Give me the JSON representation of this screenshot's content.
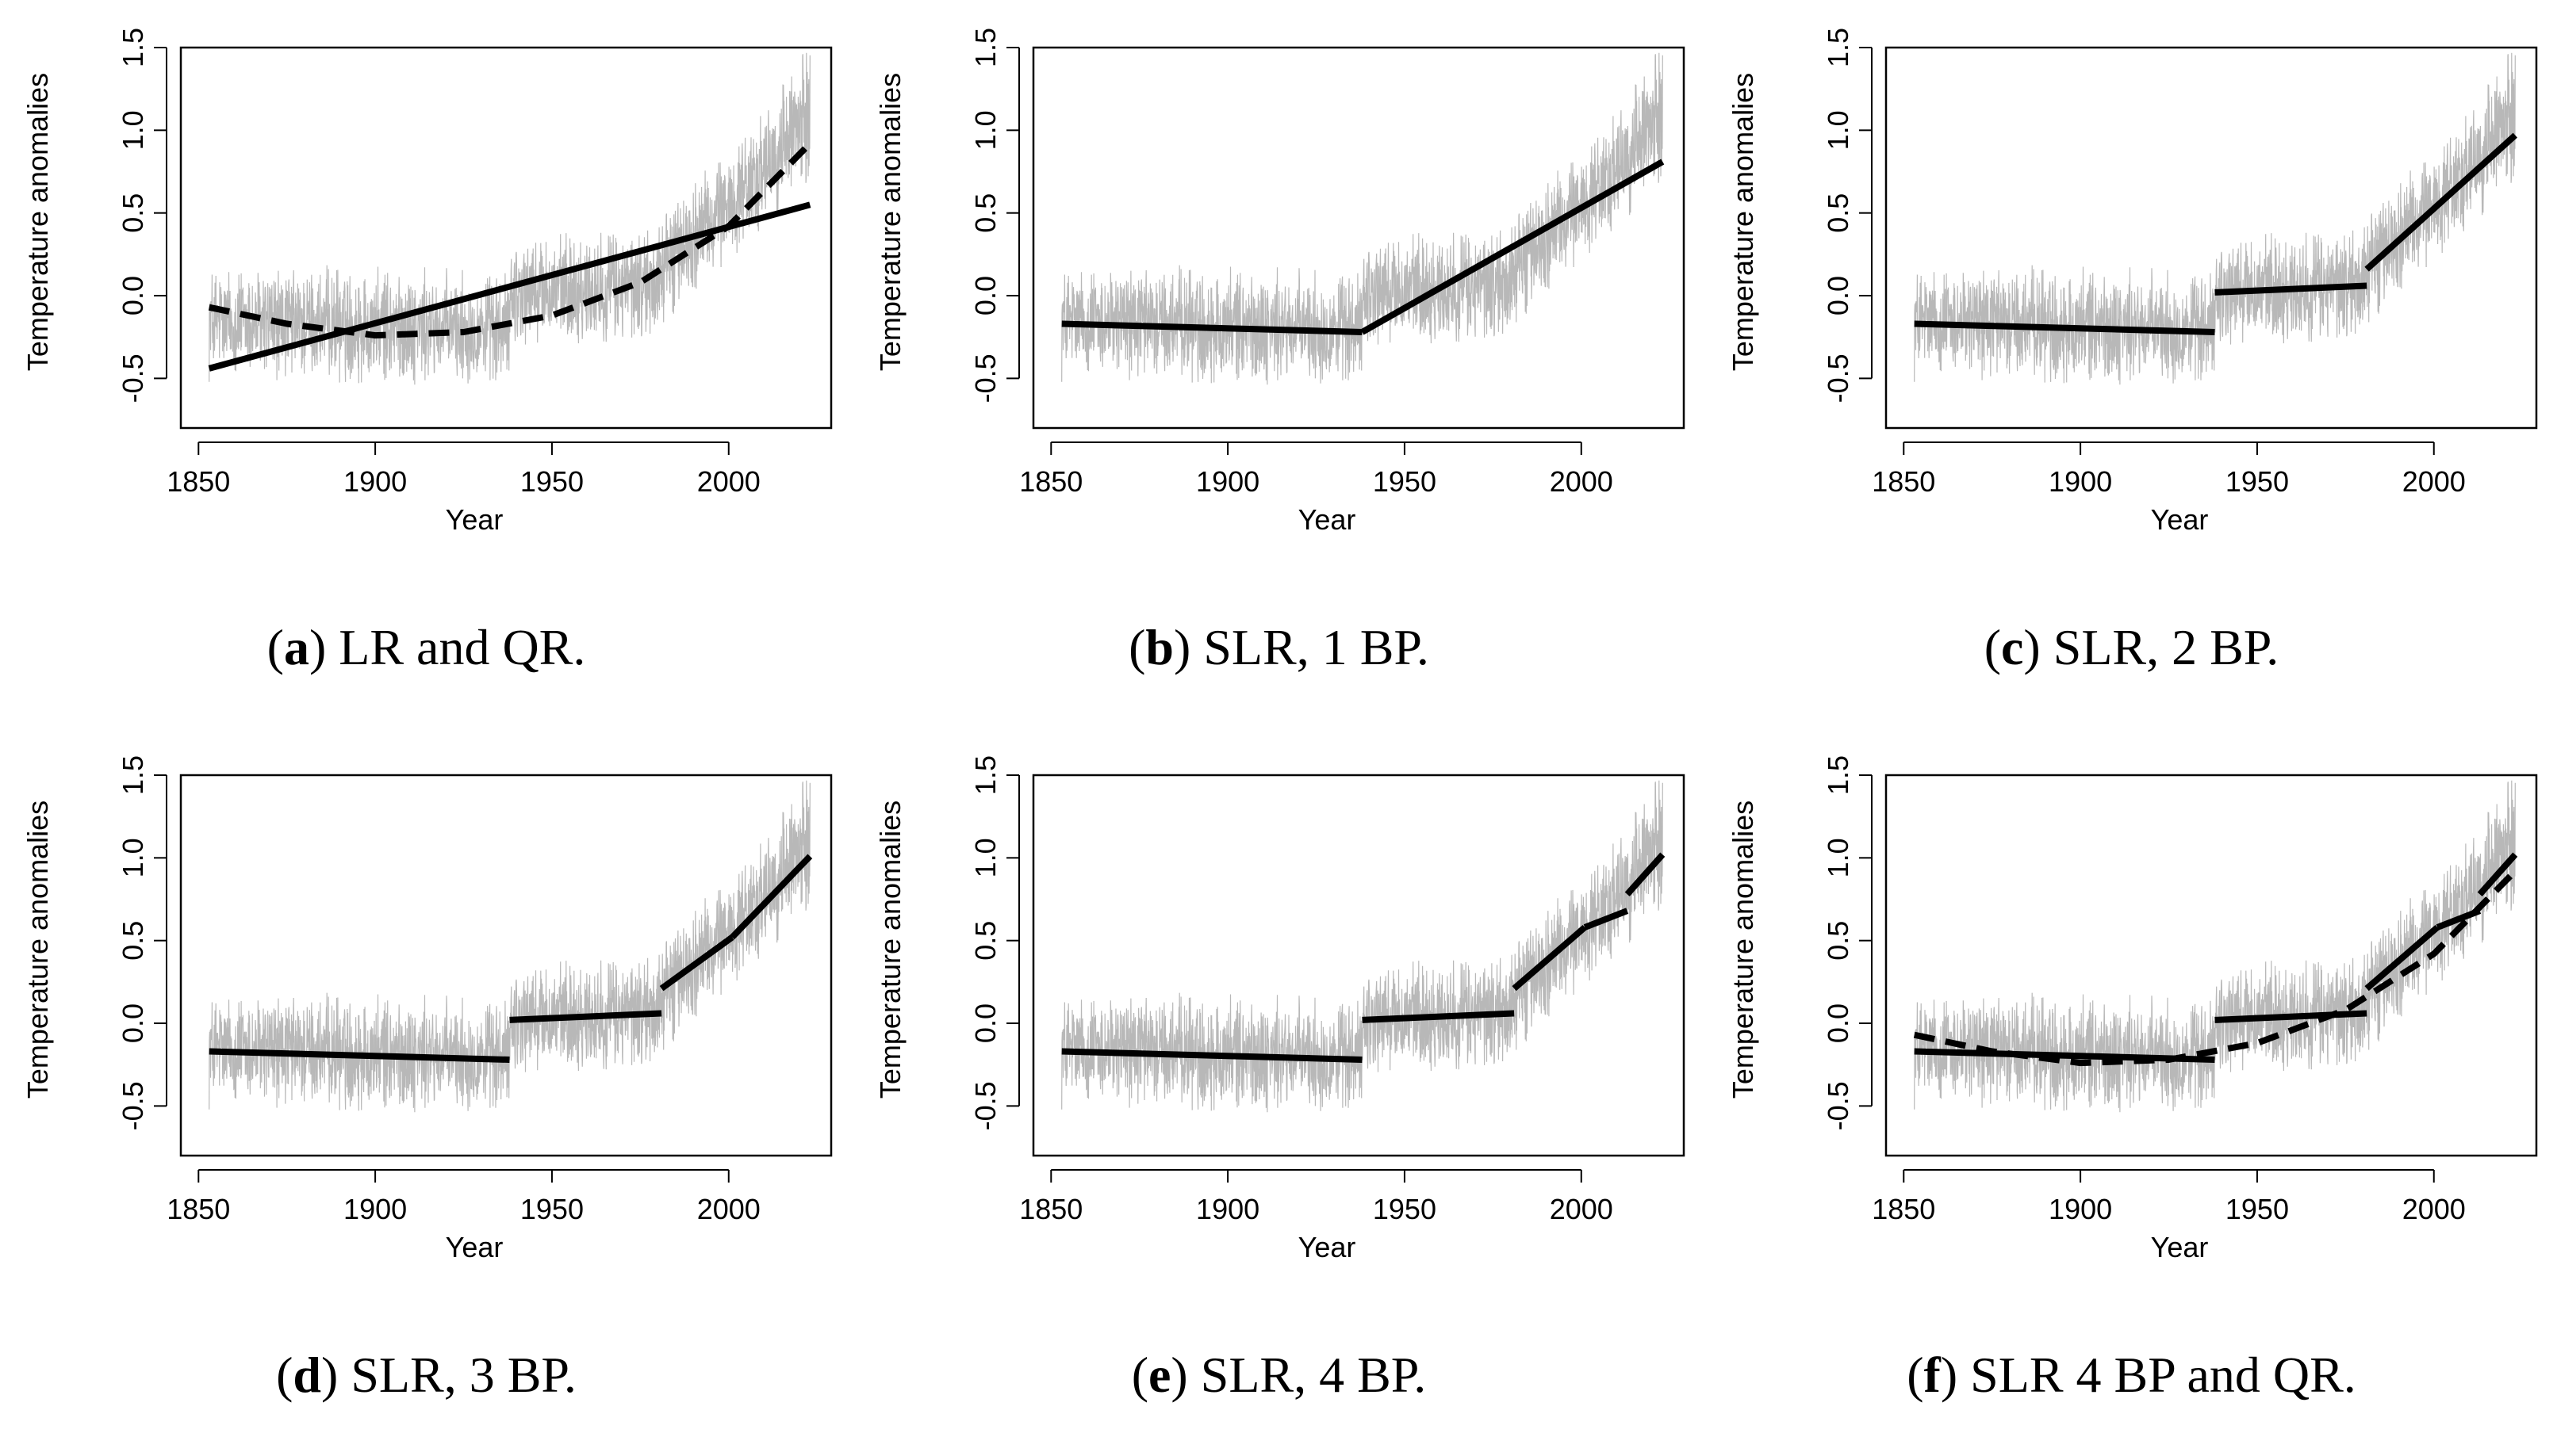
{
  "colors": {
    "noise": "#b8b8b8",
    "fit": "#000000",
    "frame": "#000000"
  },
  "chart_data": [
    {
      "type": "line",
      "id": "a",
      "caption_tag": "a",
      "caption_text": "LR and QR.",
      "xlabel": "Year",
      "ylabel": "Temperature anomalies",
      "xlim": [
        1845,
        2029
      ],
      "ylim": [
        -0.8,
        1.5
      ],
      "xticks": [
        1850,
        1900,
        1950,
        2000
      ],
      "yticks": [
        -0.5,
        0.0,
        0.5,
        1.0,
        1.5
      ],
      "xtick_labels": [
        "1850",
        "1900",
        "1950",
        "2000"
      ],
      "ytick_labels": [
        "-0.5",
        "0.0",
        "0.5",
        "1.0",
        "1.5"
      ],
      "fits": [
        {
          "name": "linear regression",
          "style": "solid",
          "points": [
            [
              1853,
              -0.44
            ],
            [
              2023,
              0.55
            ]
          ]
        },
        {
          "name": "quadratic regression",
          "style": "dashed",
          "points": [
            [
              1853,
              -0.07
            ],
            [
              1875,
              -0.17
            ],
            [
              1900,
              -0.24
            ],
            [
              1925,
              -0.22
            ],
            [
              1950,
              -0.12
            ],
            [
              1975,
              0.08
            ],
            [
              2000,
              0.42
            ],
            [
              2023,
              0.92
            ]
          ]
        }
      ]
    },
    {
      "type": "line",
      "id": "b",
      "caption_tag": "b",
      "caption_text": "SLR, 1 BP.",
      "xlabel": "Year",
      "ylabel": "Temperature anomalies",
      "xlim": [
        1845,
        2029
      ],
      "ylim": [
        -0.8,
        1.5
      ],
      "xticks": [
        1850,
        1900,
        1950,
        2000
      ],
      "yticks": [
        -0.5,
        0.0,
        0.5,
        1.0,
        1.5
      ],
      "xtick_labels": [
        "1850",
        "1900",
        "1950",
        "2000"
      ],
      "ytick_labels": [
        "-0.5",
        "0.0",
        "0.5",
        "1.0",
        "1.5"
      ],
      "fits": [
        {
          "name": "segment 1",
          "style": "solid",
          "points": [
            [
              1853,
              -0.17
            ],
            [
              1938,
              -0.22
            ]
          ]
        },
        {
          "name": "segment 2",
          "style": "solid",
          "points": [
            [
              1938,
              -0.22
            ],
            [
              2023,
              0.81
            ]
          ]
        }
      ]
    },
    {
      "type": "line",
      "id": "c",
      "caption_tag": "c",
      "caption_text": "SLR, 2 BP.",
      "xlabel": "Year",
      "ylabel": "Temperature anomalies",
      "xlim": [
        1845,
        2029
      ],
      "ylim": [
        -0.8,
        1.5
      ],
      "xticks": [
        1850,
        1900,
        1950,
        2000
      ],
      "yticks": [
        -0.5,
        0.0,
        0.5,
        1.0,
        1.5
      ],
      "xtick_labels": [
        "1850",
        "1900",
        "1950",
        "2000"
      ],
      "ytick_labels": [
        "-0.5",
        "0.0",
        "0.5",
        "1.0",
        "1.5"
      ],
      "fits": [
        {
          "name": "segment 1",
          "style": "solid",
          "points": [
            [
              1853,
              -0.17
            ],
            [
              1938,
              -0.22
            ]
          ]
        },
        {
          "name": "segment 2",
          "style": "solid",
          "points": [
            [
              1938,
              0.02
            ],
            [
              1981,
              0.06
            ]
          ]
        },
        {
          "name": "segment 3",
          "style": "solid",
          "points": [
            [
              1981,
              0.16
            ],
            [
              2023,
              0.97
            ]
          ]
        }
      ]
    },
    {
      "type": "line",
      "id": "d",
      "caption_tag": "d",
      "caption_text": "SLR, 3 BP.",
      "xlabel": "Year",
      "ylabel": "Temperature anomalies",
      "xlim": [
        1845,
        2029
      ],
      "ylim": [
        -0.8,
        1.5
      ],
      "xticks": [
        1850,
        1900,
        1950,
        2000
      ],
      "yticks": [
        -0.5,
        0.0,
        0.5,
        1.0,
        1.5
      ],
      "xtick_labels": [
        "1850",
        "1900",
        "1950",
        "2000"
      ],
      "ytick_labels": [
        "-0.5",
        "0.0",
        "0.5",
        "1.0",
        "1.5"
      ],
      "fits": [
        {
          "name": "segment 1",
          "style": "solid",
          "points": [
            [
              1853,
              -0.17
            ],
            [
              1938,
              -0.22
            ]
          ]
        },
        {
          "name": "segment 2",
          "style": "solid",
          "points": [
            [
              1938,
              0.02
            ],
            [
              1981,
              0.06
            ]
          ]
        },
        {
          "name": "segment 3",
          "style": "solid",
          "points": [
            [
              1981,
              0.21
            ],
            [
              2001,
              0.52
            ]
          ]
        },
        {
          "name": "segment 4",
          "style": "solid",
          "points": [
            [
              2001,
              0.52
            ],
            [
              2023,
              1.01
            ]
          ]
        }
      ]
    },
    {
      "type": "line",
      "id": "e",
      "caption_tag": "e",
      "caption_text": "SLR, 4 BP.",
      "xlabel": "Year",
      "ylabel": "Temperature anomalies",
      "xlim": [
        1845,
        2029
      ],
      "ylim": [
        -0.8,
        1.5
      ],
      "xticks": [
        1850,
        1900,
        1950,
        2000
      ],
      "yticks": [
        -0.5,
        0.0,
        0.5,
        1.0,
        1.5
      ],
      "xtick_labels": [
        "1850",
        "1900",
        "1950",
        "2000"
      ],
      "ytick_labels": [
        "-0.5",
        "0.0",
        "0.5",
        "1.0",
        "1.5"
      ],
      "fits": [
        {
          "name": "segment 1",
          "style": "solid",
          "points": [
            [
              1853,
              -0.17
            ],
            [
              1938,
              -0.22
            ]
          ]
        },
        {
          "name": "segment 2",
          "style": "solid",
          "points": [
            [
              1938,
              0.02
            ],
            [
              1981,
              0.06
            ]
          ]
        },
        {
          "name": "segment 3",
          "style": "solid",
          "points": [
            [
              1981,
              0.21
            ],
            [
              2001,
              0.58
            ]
          ]
        },
        {
          "name": "segment 4",
          "style": "solid",
          "points": [
            [
              2001,
              0.58
            ],
            [
              2013,
              0.68
            ]
          ]
        },
        {
          "name": "segment 5",
          "style": "solid",
          "points": [
            [
              2013,
              0.78
            ],
            [
              2023,
              1.02
            ]
          ]
        }
      ]
    },
    {
      "type": "line",
      "id": "f",
      "caption_tag": "f",
      "caption_text": "SLR 4 BP and QR.",
      "xlabel": "Year",
      "ylabel": "Temperature anomalies",
      "xlim": [
        1845,
        2029
      ],
      "ylim": [
        -0.8,
        1.5
      ],
      "xticks": [
        1850,
        1900,
        1950,
        2000
      ],
      "yticks": [
        -0.5,
        0.0,
        0.5,
        1.0,
        1.5
      ],
      "xtick_labels": [
        "1850",
        "1900",
        "1950",
        "2000"
      ],
      "ytick_labels": [
        "-0.5",
        "0.0",
        "0.5",
        "1.0",
        "1.5"
      ],
      "fits": [
        {
          "name": "segment 1",
          "style": "solid",
          "points": [
            [
              1853,
              -0.17
            ],
            [
              1938,
              -0.22
            ]
          ]
        },
        {
          "name": "segment 2",
          "style": "solid",
          "points": [
            [
              1938,
              0.02
            ],
            [
              1981,
              0.06
            ]
          ]
        },
        {
          "name": "segment 3",
          "style": "solid",
          "points": [
            [
              1981,
              0.21
            ],
            [
              2001,
              0.58
            ]
          ]
        },
        {
          "name": "segment 4",
          "style": "solid",
          "points": [
            [
              2001,
              0.58
            ],
            [
              2013,
              0.68
            ]
          ]
        },
        {
          "name": "segment 5",
          "style": "solid",
          "points": [
            [
              2013,
              0.78
            ],
            [
              2023,
              1.02
            ]
          ]
        },
        {
          "name": "quadratic regression",
          "style": "dashed",
          "points": [
            [
              1853,
              -0.07
            ],
            [
              1875,
              -0.17
            ],
            [
              1900,
              -0.24
            ],
            [
              1925,
              -0.22
            ],
            [
              1950,
              -0.12
            ],
            [
              1975,
              0.08
            ],
            [
              2000,
              0.42
            ],
            [
              2023,
              0.92
            ]
          ]
        }
      ]
    }
  ]
}
